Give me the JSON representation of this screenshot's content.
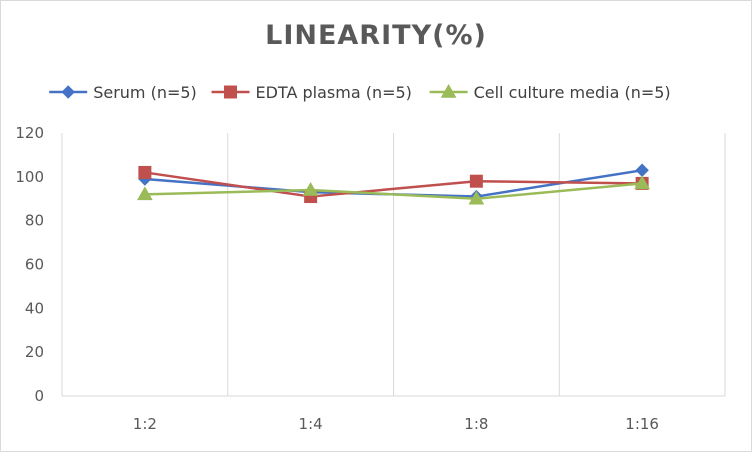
{
  "chart_data": {
    "type": "line",
    "title": "LINEARITY(%)",
    "categories": [
      "1:2",
      "1:4",
      "1:8",
      "1:16"
    ],
    "series": [
      {
        "name": "Serum (n=5)",
        "values": [
          99,
          93,
          91,
          103
        ],
        "color": "#4472c4",
        "marker": "diamond"
      },
      {
        "name": "EDTA plasma (n=5)",
        "values": [
          102,
          91,
          98,
          97
        ],
        "color": "#c0504d",
        "marker": "square"
      },
      {
        "name": "Cell culture media (n=5)",
        "values": [
          92,
          94,
          90,
          97
        ],
        "color": "#9bbb59",
        "marker": "triangle"
      }
    ],
    "yticks": [
      0,
      20,
      40,
      60,
      80,
      100,
      120
    ],
    "ylim": [
      0,
      120
    ],
    "grid": "vertical",
    "legend_position": "top"
  }
}
